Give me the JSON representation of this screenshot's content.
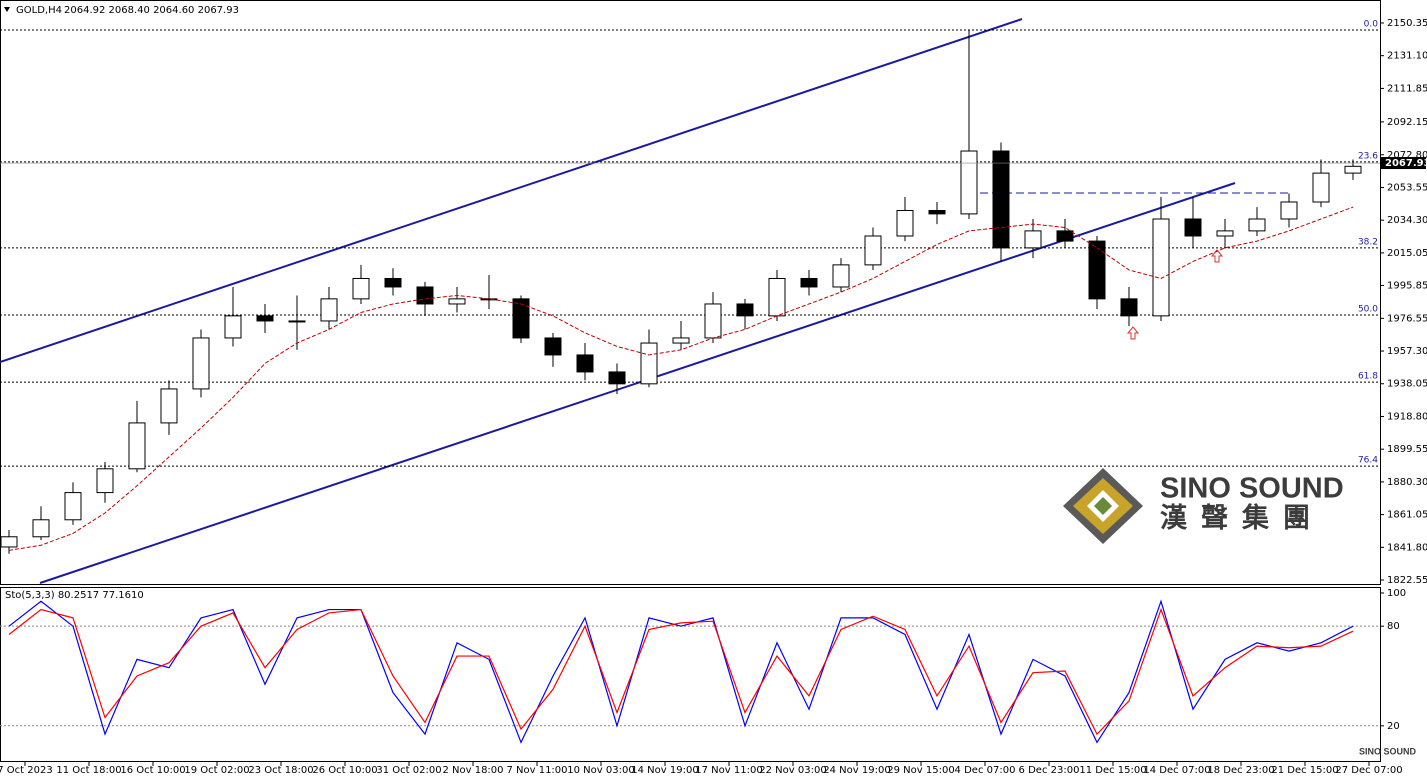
{
  "chart_data": [
    {
      "type": "candlestick",
      "title": "GOLD,H4",
      "subtitle": "2064.92 2068.40 2064.60 2067.93",
      "x": [
        -4,
        4,
        12,
        20,
        28,
        36,
        44,
        52,
        60,
        68,
        76,
        84,
        92,
        100,
        108,
        116,
        124,
        132,
        140,
        148,
        156,
        164,
        172,
        180,
        188,
        196,
        204,
        212,
        220,
        228,
        236,
        244,
        252,
        260,
        268,
        276,
        284,
        292,
        300,
        308,
        316,
        324,
        332
      ],
      "open": [
        1842,
        1848,
        1858,
        1874,
        1888,
        1915,
        1935,
        1965,
        1978,
        1975,
        1975,
        1988,
        2000,
        1995,
        1985,
        1988,
        1988,
        1965,
        1955,
        1945,
        1938,
        1962,
        1965,
        1985,
        1978,
        2000,
        1995,
        2008,
        2025,
        2040,
        2038,
        2075,
        2018,
        2028,
        2022,
        1988,
        1978,
        2035,
        2025,
        2028,
        2035,
        2045,
        2062
      ],
      "high": [
        1852,
        1866,
        1880,
        1892,
        1928,
        1940,
        1970,
        1995,
        1985,
        1990,
        1995,
        2008,
        2006,
        1998,
        1995,
        2002,
        1990,
        1968,
        1962,
        1950,
        1970,
        1975,
        1992,
        1988,
        2005,
        2005,
        2012,
        2030,
        2048,
        2045,
        2146,
        2080,
        2035,
        2035,
        2025,
        1995,
        2048,
        2048,
        2035,
        2042,
        2050,
        2070,
        2070
      ],
      "low": [
        1838,
        1846,
        1855,
        1868,
        1886,
        1908,
        1930,
        1960,
        1968,
        1958,
        1970,
        1985,
        1990,
        1978,
        1980,
        1982,
        1962,
        1948,
        1940,
        1932,
        1936,
        1958,
        1962,
        1970,
        1975,
        1990,
        1992,
        2005,
        2022,
        2032,
        2035,
        2010,
        2012,
        2018,
        1982,
        1972,
        1975,
        2018,
        2018,
        2025,
        2030,
        2042,
        2058
      ],
      "close": [
        1848,
        1858,
        1874,
        1888,
        1915,
        1935,
        1965,
        1978,
        1975,
        1975,
        1988,
        2000,
        1995,
        1985,
        1988,
        1988,
        1965,
        1955,
        1945,
        1938,
        1962,
        1965,
        1985,
        1978,
        2000,
        1995,
        2008,
        2025,
        2040,
        2038,
        2075,
        2018,
        2028,
        2022,
        1988,
        1978,
        2035,
        2025,
        2028,
        2035,
        2045,
        2062,
        2066
      ],
      "ma": {
        "color": "#c00000",
        "values": [
          1840,
          1843,
          1850,
          1862,
          1878,
          1895,
          1912,
          1930,
          1950,
          1962,
          1970,
          1980,
          1985,
          1988,
          1990,
          1988,
          1985,
          1978,
          1968,
          1960,
          1955,
          1958,
          1965,
          1970,
          1978,
          1985,
          1992,
          2000,
          2010,
          2020,
          2028,
          2030,
          2032,
          2030,
          2018,
          2005,
          2000,
          2010,
          2018,
          2022,
          2028,
          2035,
          2042
        ]
      },
      "price_label": {
        "value": 2067.93,
        "label": "2067.93"
      },
      "fib_levels": [
        {
          "label": "0.0",
          "price": 2146.2
        },
        {
          "label": "23.6",
          "price": 2068.6
        },
        {
          "label": "38.2",
          "price": 2018
        },
        {
          "label": "50.0",
          "price": 1978.5
        },
        {
          "label": "61.8",
          "price": 1939
        },
        {
          "label": "76.4",
          "price": 1889.6
        }
      ],
      "xlim": [
        -6.25,
        338.75
      ],
      "ylim": [
        1820.8,
        2162.1
      ],
      "yticks": [
        2150.35,
        {
          "value": 2131.1,
          "label": "2131.10"
        },
        2111.85,
        2092.15,
        {
          "value": 2072.8,
          "label": "2072.80"
        },
        2053.55,
        {
          "value": 2034.3,
          "label": "2034.30"
        },
        2015.05,
        1995.85,
        1976.55,
        {
          "value": 1957.3,
          "label": "1957.30"
        },
        1938.05,
        {
          "value": 1918.8,
          "label": "1918.80"
        },
        1899.55,
        {
          "value": 1880.3,
          "label": "1880.30"
        },
        1861.05,
        {
          "value": 1841.8,
          "label": "1841.80"
        },
        1822.55
      ],
      "xticks": [
        {
          "value": 0,
          "label": "7 Oct 2023"
        },
        {
          "value": 16,
          "label": "11 Oct 18:00"
        },
        {
          "value": 32,
          "label": "16 Oct 10:00"
        },
        {
          "value": 48,
          "label": "19 Oct 02:00"
        },
        {
          "value": 64,
          "label": "23 Oct 18:00"
        },
        {
          "value": 80,
          "label": "26 Oct 10:00"
        },
        {
          "value": 96,
          "label": "31 Oct 02:00"
        },
        {
          "value": 112,
          "label": "2 Nov 18:00"
        },
        {
          "value": 128,
          "label": "7 Nov 11:00"
        },
        {
          "value": 144,
          "label": "10 Nov 03:00"
        },
        {
          "value": 160,
          "label": "14 Nov 19:00"
        },
        {
          "value": 176,
          "label": "17 Nov 11:00"
        },
        {
          "value": 192,
          "label": "22 Nov 03:00"
        },
        {
          "value": 208,
          "label": "24 Nov 19:00"
        },
        {
          "value": 224,
          "label": "29 Nov 15:00"
        },
        {
          "value": 240,
          "label": "4 Dec 07:00"
        },
        {
          "value": 256,
          "label": "6 Dec 23:00"
        },
        {
          "value": 272,
          "label": "11 Dec 15:00"
        },
        {
          "value": 288,
          "label": "14 Dec 07:00"
        },
        {
          "value": 304,
          "label": "18 Dec 23:00"
        },
        {
          "value": 320,
          "label": "21 Dec 15:00"
        },
        {
          "value": 336,
          "label": "27 Dec 07:00"
        }
      ]
    },
    {
      "type": "line",
      "title": "Sto(5,3,3) 80.2517 77.1610",
      "x": [
        -4,
        4,
        12,
        20,
        28,
        36,
        44,
        52,
        60,
        68,
        76,
        84,
        92,
        100,
        108,
        116,
        124,
        132,
        140,
        148,
        156,
        164,
        172,
        180,
        188,
        196,
        204,
        212,
        220,
        228,
        236,
        244,
        252,
        260,
        268,
        276,
        284,
        292,
        300,
        308,
        316,
        324,
        332
      ],
      "series": [
        {
          "color": "#0000ff",
          "values": [
            80,
            95,
            80,
            15,
            60,
            55,
            85,
            90,
            45,
            85,
            90,
            90,
            40,
            15,
            70,
            60,
            10,
            50,
            85,
            20,
            85,
            80,
            85,
            20,
            70,
            30,
            85,
            85,
            75,
            30,
            75,
            15,
            60,
            50,
            10,
            40,
            95,
            30,
            60,
            70,
            65,
            70,
            80
          ]
        },
        {
          "color": "#ff0000",
          "values": [
            75,
            90,
            85,
            25,
            50,
            58,
            80,
            88,
            55,
            78,
            88,
            90,
            50,
            22,
            62,
            62,
            18,
            42,
            80,
            28,
            78,
            82,
            83,
            28,
            62,
            38,
            78,
            86,
            78,
            38,
            68,
            22,
            52,
            53,
            15,
            35,
            90,
            38,
            55,
            68,
            67,
            68,
            77
          ]
        }
      ],
      "xlim": [
        -6.25,
        338.75
      ],
      "ylim": [
        -1.8,
        103
      ],
      "yticks": [
        100,
        80,
        20
      ],
      "levels": [
        80,
        20
      ]
    }
  ],
  "watermark": {
    "name": "SINO SOUND",
    "chinese": "漢聲集團",
    "badge": "SINO SOUND"
  }
}
